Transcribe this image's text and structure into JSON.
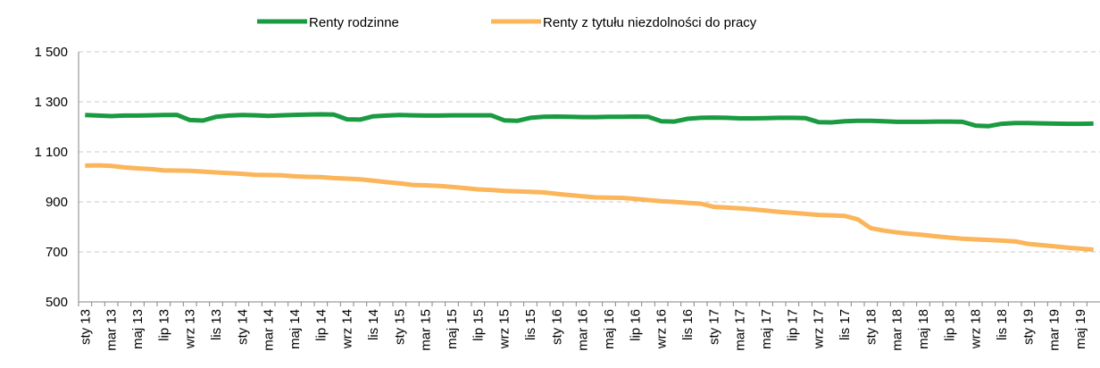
{
  "chart_data": {
    "type": "line",
    "categories": [
      "sty 13",
      null,
      "mar 13",
      null,
      "maj 13",
      null,
      "lip 13",
      null,
      "wrz 13",
      null,
      "lis 13",
      null,
      "sty 14",
      null,
      "mar 14",
      null,
      "maj 14",
      null,
      "lip 14",
      null,
      "wrz 14",
      null,
      "lis 14",
      null,
      "sty 15",
      null,
      "mar 15",
      null,
      "maj 15",
      null,
      "lip 15",
      null,
      "wrz 15",
      null,
      "lis 15",
      null,
      "sty 16",
      null,
      "mar 16",
      null,
      "maj 16",
      null,
      "lip 16",
      null,
      "wrz 16",
      null,
      "lis 16",
      null,
      "sty 17",
      null,
      "mar 17",
      null,
      "maj 17",
      null,
      "lip 17",
      null,
      "wrz 17",
      null,
      "lis 17",
      null,
      "sty 18",
      null,
      "mar 18",
      null,
      "maj 18",
      null,
      "lip 18",
      null,
      "wrz 18",
      null,
      "lis 18",
      null,
      "sty 19",
      null,
      "mar 19",
      null,
      "maj 19",
      null
    ],
    "series": [
      {
        "name": "Renty rodzinne",
        "color": "#1a9a41",
        "values": [
          1247,
          1245,
          1243,
          1245,
          1245,
          1246,
          1247,
          1248,
          1227,
          1225,
          1240,
          1245,
          1247,
          1246,
          1244,
          1246,
          1248,
          1249,
          1250,
          1249,
          1230,
          1229,
          1242,
          1245,
          1247,
          1246,
          1245,
          1245,
          1246,
          1246,
          1246,
          1246,
          1226,
          1224,
          1236,
          1240,
          1241,
          1240,
          1239,
          1239,
          1240,
          1240,
          1241,
          1240,
          1222,
          1221,
          1232,
          1236,
          1237,
          1236,
          1234,
          1234,
          1235,
          1236,
          1236,
          1235,
          1219,
          1218,
          1222,
          1224,
          1224,
          1222,
          1220,
          1220,
          1220,
          1221,
          1221,
          1220,
          1205,
          1203,
          1212,
          1215,
          1215,
          1214,
          1213,
          1212,
          1212,
          1213
        ]
      },
      {
        "name": "Renty z tytułu niezdolności do pracy",
        "color": "#fbb55a",
        "values": [
          1045,
          1046,
          1044,
          1038,
          1034,
          1031,
          1026,
          1025,
          1024,
          1021,
          1018,
          1015,
          1012,
          1008,
          1007,
          1006,
          1002,
          1000,
          999,
          995,
          993,
          990,
          985,
          979,
          974,
          968,
          966,
          964,
          960,
          955,
          950,
          948,
          944,
          942,
          940,
          938,
          932,
          927,
          922,
          918,
          917,
          916,
          912,
          907,
          903,
          900,
          896,
          893,
          880,
          877,
          874,
          870,
          865,
          860,
          856,
          852,
          848,
          846,
          844,
          830,
          795,
          785,
          778,
          772,
          768,
          762,
          757,
          753,
          750,
          748,
          745,
          742,
          732,
          727,
          722,
          717,
          713,
          709
        ]
      }
    ],
    "ylim": [
      500,
      1500
    ],
    "yticks": [
      500,
      700,
      900,
      {
        "value": 1100,
        "label": "1 100"
      },
      {
        "value": 1300,
        "label": "1 300"
      },
      {
        "value": 1500,
        "label": "1 500"
      }
    ],
    "grid": true,
    "legend": "top"
  }
}
